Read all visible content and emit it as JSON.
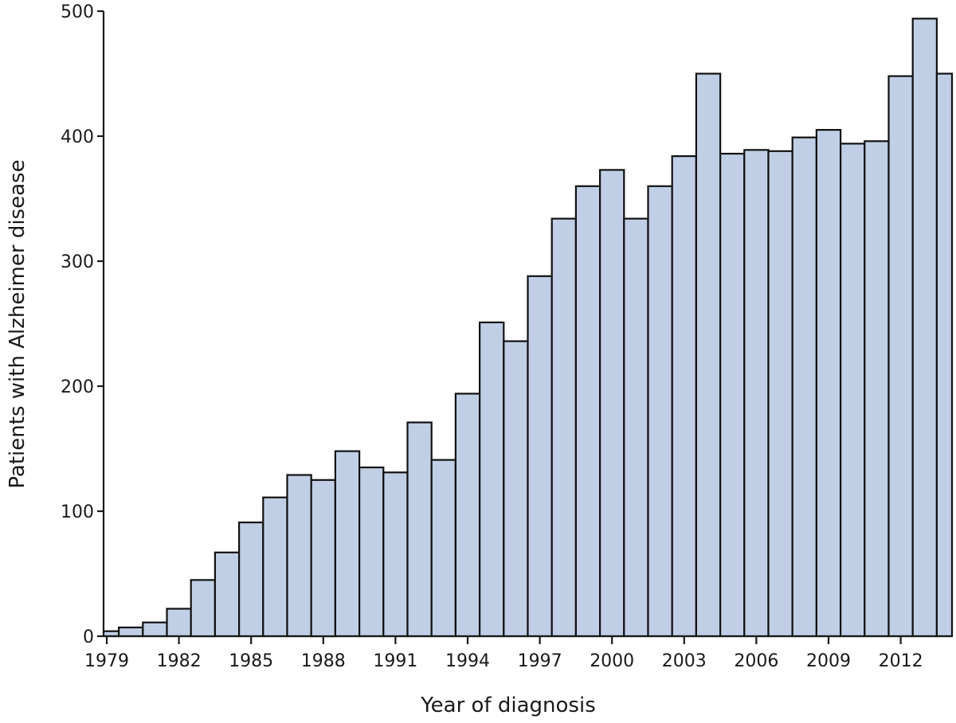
{
  "chart_data": {
    "type": "bar",
    "title": "",
    "xlabel": "Year of diagnosis",
    "ylabel": "Patients with Alzheimer disease",
    "ylim": [
      0,
      500
    ],
    "yticks": [
      0,
      100,
      200,
      300,
      400,
      500
    ],
    "xtick_labels": [
      "1979",
      "1982",
      "1985",
      "1988",
      "1991",
      "1994",
      "1997",
      "2000",
      "2003",
      "2006",
      "2009",
      "2012"
    ],
    "grid": false,
    "legend": null,
    "bar_color": "#c0cfe6",
    "edge_color": "#111111",
    "categories": [
      1979,
      1980,
      1981,
      1982,
      1983,
      1984,
      1985,
      1986,
      1987,
      1988,
      1989,
      1990,
      1991,
      1992,
      1993,
      1994,
      1995,
      1996,
      1997,
      1998,
      1999,
      2000,
      2001,
      2002,
      2003,
      2004,
      2005,
      2006,
      2007,
      2008,
      2009,
      2010,
      2011,
      2012,
      2013,
      2014
    ],
    "values": [
      4,
      7,
      11,
      22,
      45,
      67,
      91,
      111,
      129,
      125,
      148,
      135,
      131,
      171,
      141,
      194,
      251,
      236,
      288,
      334,
      360,
      373,
      334,
      360,
      384,
      450,
      386,
      389,
      388,
      399,
      405,
      394,
      396,
      448,
      494,
      450
    ]
  }
}
